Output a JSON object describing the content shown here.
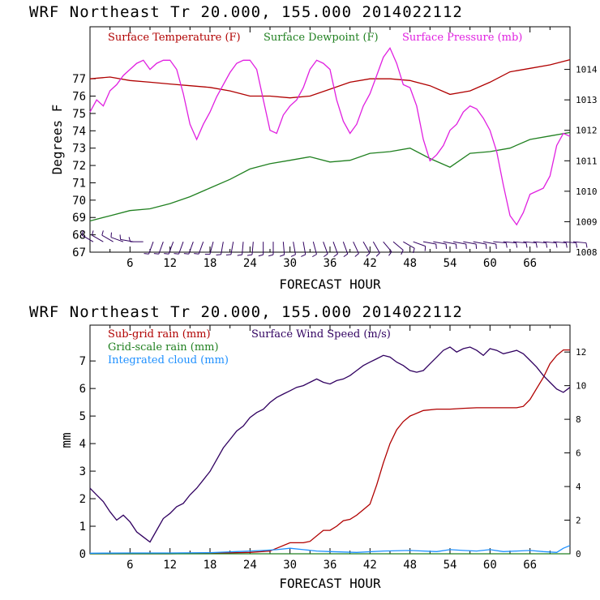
{
  "chart_data": [
    {
      "type": "line",
      "title": "WRF   Northeast Tr  20.000, 155.000  2014022112",
      "xlabel": "FORECAST HOUR",
      "ylabel": "Degrees F",
      "xlim": [
        0,
        72
      ],
      "ylim": [
        67,
        80
      ],
      "y2lim": [
        1008,
        1015.4
      ],
      "grid": false,
      "legend": "top",
      "x_ticks": [
        "6",
        "12",
        "18",
        "24",
        "30",
        "36",
        "42",
        "48",
        "54",
        "60",
        "66"
      ],
      "y_ticks": [
        "67",
        "68",
        "69",
        "70",
        "71",
        "72",
        "73",
        "74",
        "75",
        "76",
        "77"
      ],
      "y2_ticks": [
        "1008",
        "1009",
        "1010",
        "1011",
        "1012",
        "1013",
        "1014"
      ],
      "series": [
        {
          "name": "Surface Temperature (F)",
          "color": "#b00000",
          "axis": "left",
          "x": [
            0,
            3,
            6,
            9,
            12,
            15,
            18,
            21,
            24,
            27,
            30,
            33,
            36,
            39,
            42,
            45,
            48,
            51,
            54,
            57,
            60,
            63,
            66,
            69,
            72
          ],
          "y": [
            77.0,
            77.1,
            76.9,
            76.8,
            76.7,
            76.6,
            76.5,
            76.3,
            76.0,
            76.0,
            75.9,
            76.0,
            76.4,
            76.8,
            77.0,
            77.0,
            76.9,
            76.6,
            76.1,
            76.3,
            76.8,
            77.4,
            77.6,
            77.8,
            78.1
          ]
        },
        {
          "name": "Surface Dewpoint (F)",
          "color": "#208020",
          "axis": "left",
          "x": [
            0,
            3,
            6,
            9,
            12,
            15,
            18,
            21,
            24,
            27,
            30,
            33,
            36,
            39,
            42,
            45,
            48,
            51,
            54,
            57,
            60,
            63,
            66,
            69,
            72
          ],
          "y": [
            68.8,
            69.1,
            69.4,
            69.5,
            69.8,
            70.2,
            70.7,
            71.2,
            71.8,
            72.1,
            72.3,
            72.5,
            72.2,
            72.3,
            72.7,
            72.8,
            73.0,
            72.4,
            71.9,
            72.7,
            72.8,
            73.0,
            73.5,
            73.7,
            73.9
          ]
        },
        {
          "name": "Surface Pressure (mb)",
          "color": "#e020e0",
          "axis": "right",
          "x": [
            0,
            1,
            2,
            3,
            4,
            5,
            6,
            7,
            8,
            9,
            10,
            11,
            12,
            13,
            14,
            15,
            16,
            17,
            18,
            19,
            20,
            21,
            22,
            23,
            24,
            25,
            26,
            27,
            28,
            29,
            30,
            31,
            32,
            33,
            34,
            35,
            36,
            37,
            38,
            39,
            40,
            41,
            42,
            43,
            44,
            45,
            46,
            47,
            48,
            49,
            50,
            51,
            52,
            53,
            54,
            55,
            56,
            57,
            58,
            59,
            60,
            61,
            62,
            63,
            64,
            65,
            66,
            67,
            68,
            69,
            70,
            71,
            72
          ],
          "y": [
            1012.6,
            1013.0,
            1012.8,
            1013.3,
            1013.5,
            1013.8,
            1014.0,
            1014.2,
            1014.3,
            1014.0,
            1014.2,
            1014.3,
            1014.3,
            1014.0,
            1013.2,
            1012.2,
            1011.7,
            1012.2,
            1012.6,
            1013.1,
            1013.5,
            1013.9,
            1014.2,
            1014.3,
            1014.3,
            1014.0,
            1013.0,
            1012.0,
            1011.9,
            1012.5,
            1012.8,
            1013.0,
            1013.4,
            1014.0,
            1014.3,
            1014.2,
            1014.0,
            1013.0,
            1012.3,
            1011.9,
            1012.2,
            1012.8,
            1013.2,
            1013.8,
            1014.4,
            1014.7,
            1014.2,
            1013.5,
            1013.4,
            1012.8,
            1011.7,
            1011.0,
            1011.2,
            1011.5,
            1012.0,
            1012.2,
            1012.6,
            1012.8,
            1012.7,
            1012.4,
            1012.0,
            1011.3,
            1010.2,
            1009.2,
            1008.9,
            1009.3,
            1009.9,
            1010.0,
            1010.1,
            1010.5,
            1011.5,
            1011.9,
            1011.8
          ]
        }
      ],
      "wind_barbs": {
        "note_free": true,
        "x": [
          0,
          1.5,
          3,
          4.5,
          6,
          7.5,
          9,
          10.5,
          12,
          13.5,
          15,
          16.5,
          18,
          19.5,
          21,
          22.5,
          24,
          25.5,
          27,
          28.5,
          30,
          31.5,
          33,
          34.5,
          36,
          37.5,
          39,
          40.5,
          42,
          43.5,
          45,
          46.5,
          48,
          49.5,
          51,
          52.5,
          54,
          55.5,
          57,
          58.5,
          60,
          61.5,
          63,
          64.5,
          66,
          67.5,
          69,
          70.5,
          72
        ],
        "direction_deg": [
          300,
          300,
          300,
          290,
          280,
          270,
          200,
          200,
          200,
          200,
          200,
          200,
          195,
          190,
          190,
          185,
          185,
          180,
          180,
          175,
          170,
          170,
          165,
          160,
          160,
          160,
          155,
          150,
          150,
          140,
          130,
          120,
          110,
          100,
          100,
          100,
          100,
          100,
          100,
          100,
          95,
          95,
          95,
          95,
          95,
          95,
          95,
          95,
          95
        ]
      }
    },
    {
      "type": "line",
      "title": "WRF   Northeast Tr  20.000, 155.000  2014022112",
      "xlabel": "FORECAST HOUR",
      "ylabel": "mm",
      "xlim": [
        0,
        72
      ],
      "ylim": [
        0,
        8.3
      ],
      "y2lim": [
        0,
        13.6
      ],
      "grid": false,
      "legend": "top-left",
      "x_ticks": [
        "6",
        "12",
        "18",
        "24",
        "30",
        "36",
        "42",
        "48",
        "54",
        "60",
        "66"
      ],
      "y_ticks": [
        "0",
        "1",
        "2",
        "3",
        "4",
        "5",
        "6",
        "7"
      ],
      "y2_ticks": [
        "0",
        "2",
        "4",
        "6",
        "8",
        "10",
        "12"
      ],
      "series": [
        {
          "name": "Sub-grid rain (mm)",
          "color": "#b00000",
          "axis": "left",
          "x": [
            0,
            6,
            12,
            18,
            24,
            27,
            28,
            30,
            32,
            33,
            35,
            36,
            37,
            38,
            39,
            40,
            41,
            42,
            43,
            44,
            45,
            46,
            47,
            48,
            50,
            52,
            54,
            56,
            58,
            60,
            62,
            64,
            65,
            66,
            67,
            68,
            69,
            70,
            71,
            72
          ],
          "y": [
            0.0,
            0.0,
            0.0,
            0.02,
            0.05,
            0.1,
            0.2,
            0.4,
            0.4,
            0.45,
            0.85,
            0.85,
            1.0,
            1.2,
            1.25,
            1.4,
            1.6,
            1.8,
            2.5,
            3.3,
            4.0,
            4.5,
            4.8,
            5.0,
            5.2,
            5.25,
            5.25,
            5.28,
            5.3,
            5.3,
            5.3,
            5.3,
            5.35,
            5.6,
            6.0,
            6.4,
            6.9,
            7.2,
            7.4,
            7.4
          ]
        },
        {
          "name": "Grid-scale rain (mm)",
          "color": "#208020",
          "axis": "left",
          "x": [
            0,
            72
          ],
          "y": [
            0.0,
            0.0
          ]
        },
        {
          "name": "Integrated cloud (mm)",
          "color": "#1e90ff",
          "axis": "left",
          "x": [
            0,
            6,
            12,
            18,
            22,
            24,
            26,
            28,
            30,
            32,
            34,
            36,
            40,
            44,
            48,
            52,
            54,
            56,
            58,
            60,
            62,
            64,
            66,
            68,
            70,
            71,
            72
          ],
          "y": [
            0.02,
            0.03,
            0.03,
            0.04,
            0.08,
            0.1,
            0.12,
            0.15,
            0.2,
            0.15,
            0.1,
            0.08,
            0.05,
            0.1,
            0.12,
            0.08,
            0.15,
            0.12,
            0.1,
            0.15,
            0.08,
            0.1,
            0.12,
            0.08,
            0.05,
            0.2,
            0.3
          ]
        },
        {
          "name": "Surface Wind Speed (m/s)",
          "color": "#300060",
          "axis": "right",
          "x": [
            0,
            1,
            2,
            3,
            4,
            5,
            6,
            7,
            8,
            9,
            10,
            11,
            12,
            13,
            14,
            15,
            16,
            17,
            18,
            19,
            20,
            21,
            22,
            23,
            24,
            25,
            26,
            27,
            28,
            29,
            30,
            31,
            32,
            33,
            34,
            35,
            36,
            37,
            38,
            39,
            40,
            41,
            42,
            43,
            44,
            45,
            46,
            47,
            48,
            49,
            50,
            51,
            52,
            53,
            54,
            55,
            56,
            57,
            58,
            59,
            60,
            61,
            62,
            63,
            64,
            65,
            66,
            67,
            68,
            69,
            70,
            71,
            72
          ],
          "y": [
            3.9,
            3.5,
            3.1,
            2.5,
            2.0,
            2.3,
            1.9,
            1.3,
            1.0,
            0.7,
            1.4,
            2.1,
            2.4,
            2.8,
            3.0,
            3.5,
            3.9,
            4.4,
            4.9,
            5.6,
            6.3,
            6.8,
            7.3,
            7.6,
            8.1,
            8.4,
            8.6,
            9.0,
            9.3,
            9.5,
            9.7,
            9.9,
            10.0,
            10.2,
            10.4,
            10.2,
            10.1,
            10.3,
            10.4,
            10.6,
            10.9,
            11.2,
            11.4,
            11.6,
            11.8,
            11.7,
            11.4,
            11.2,
            10.9,
            10.8,
            10.9,
            11.3,
            11.7,
            12.1,
            12.3,
            12.0,
            12.2,
            12.3,
            12.1,
            11.8,
            12.2,
            12.1,
            11.9,
            12.0,
            12.1,
            11.9,
            11.5,
            11.1,
            10.6,
            10.2,
            9.8,
            9.6,
            9.9
          ]
        }
      ]
    }
  ]
}
